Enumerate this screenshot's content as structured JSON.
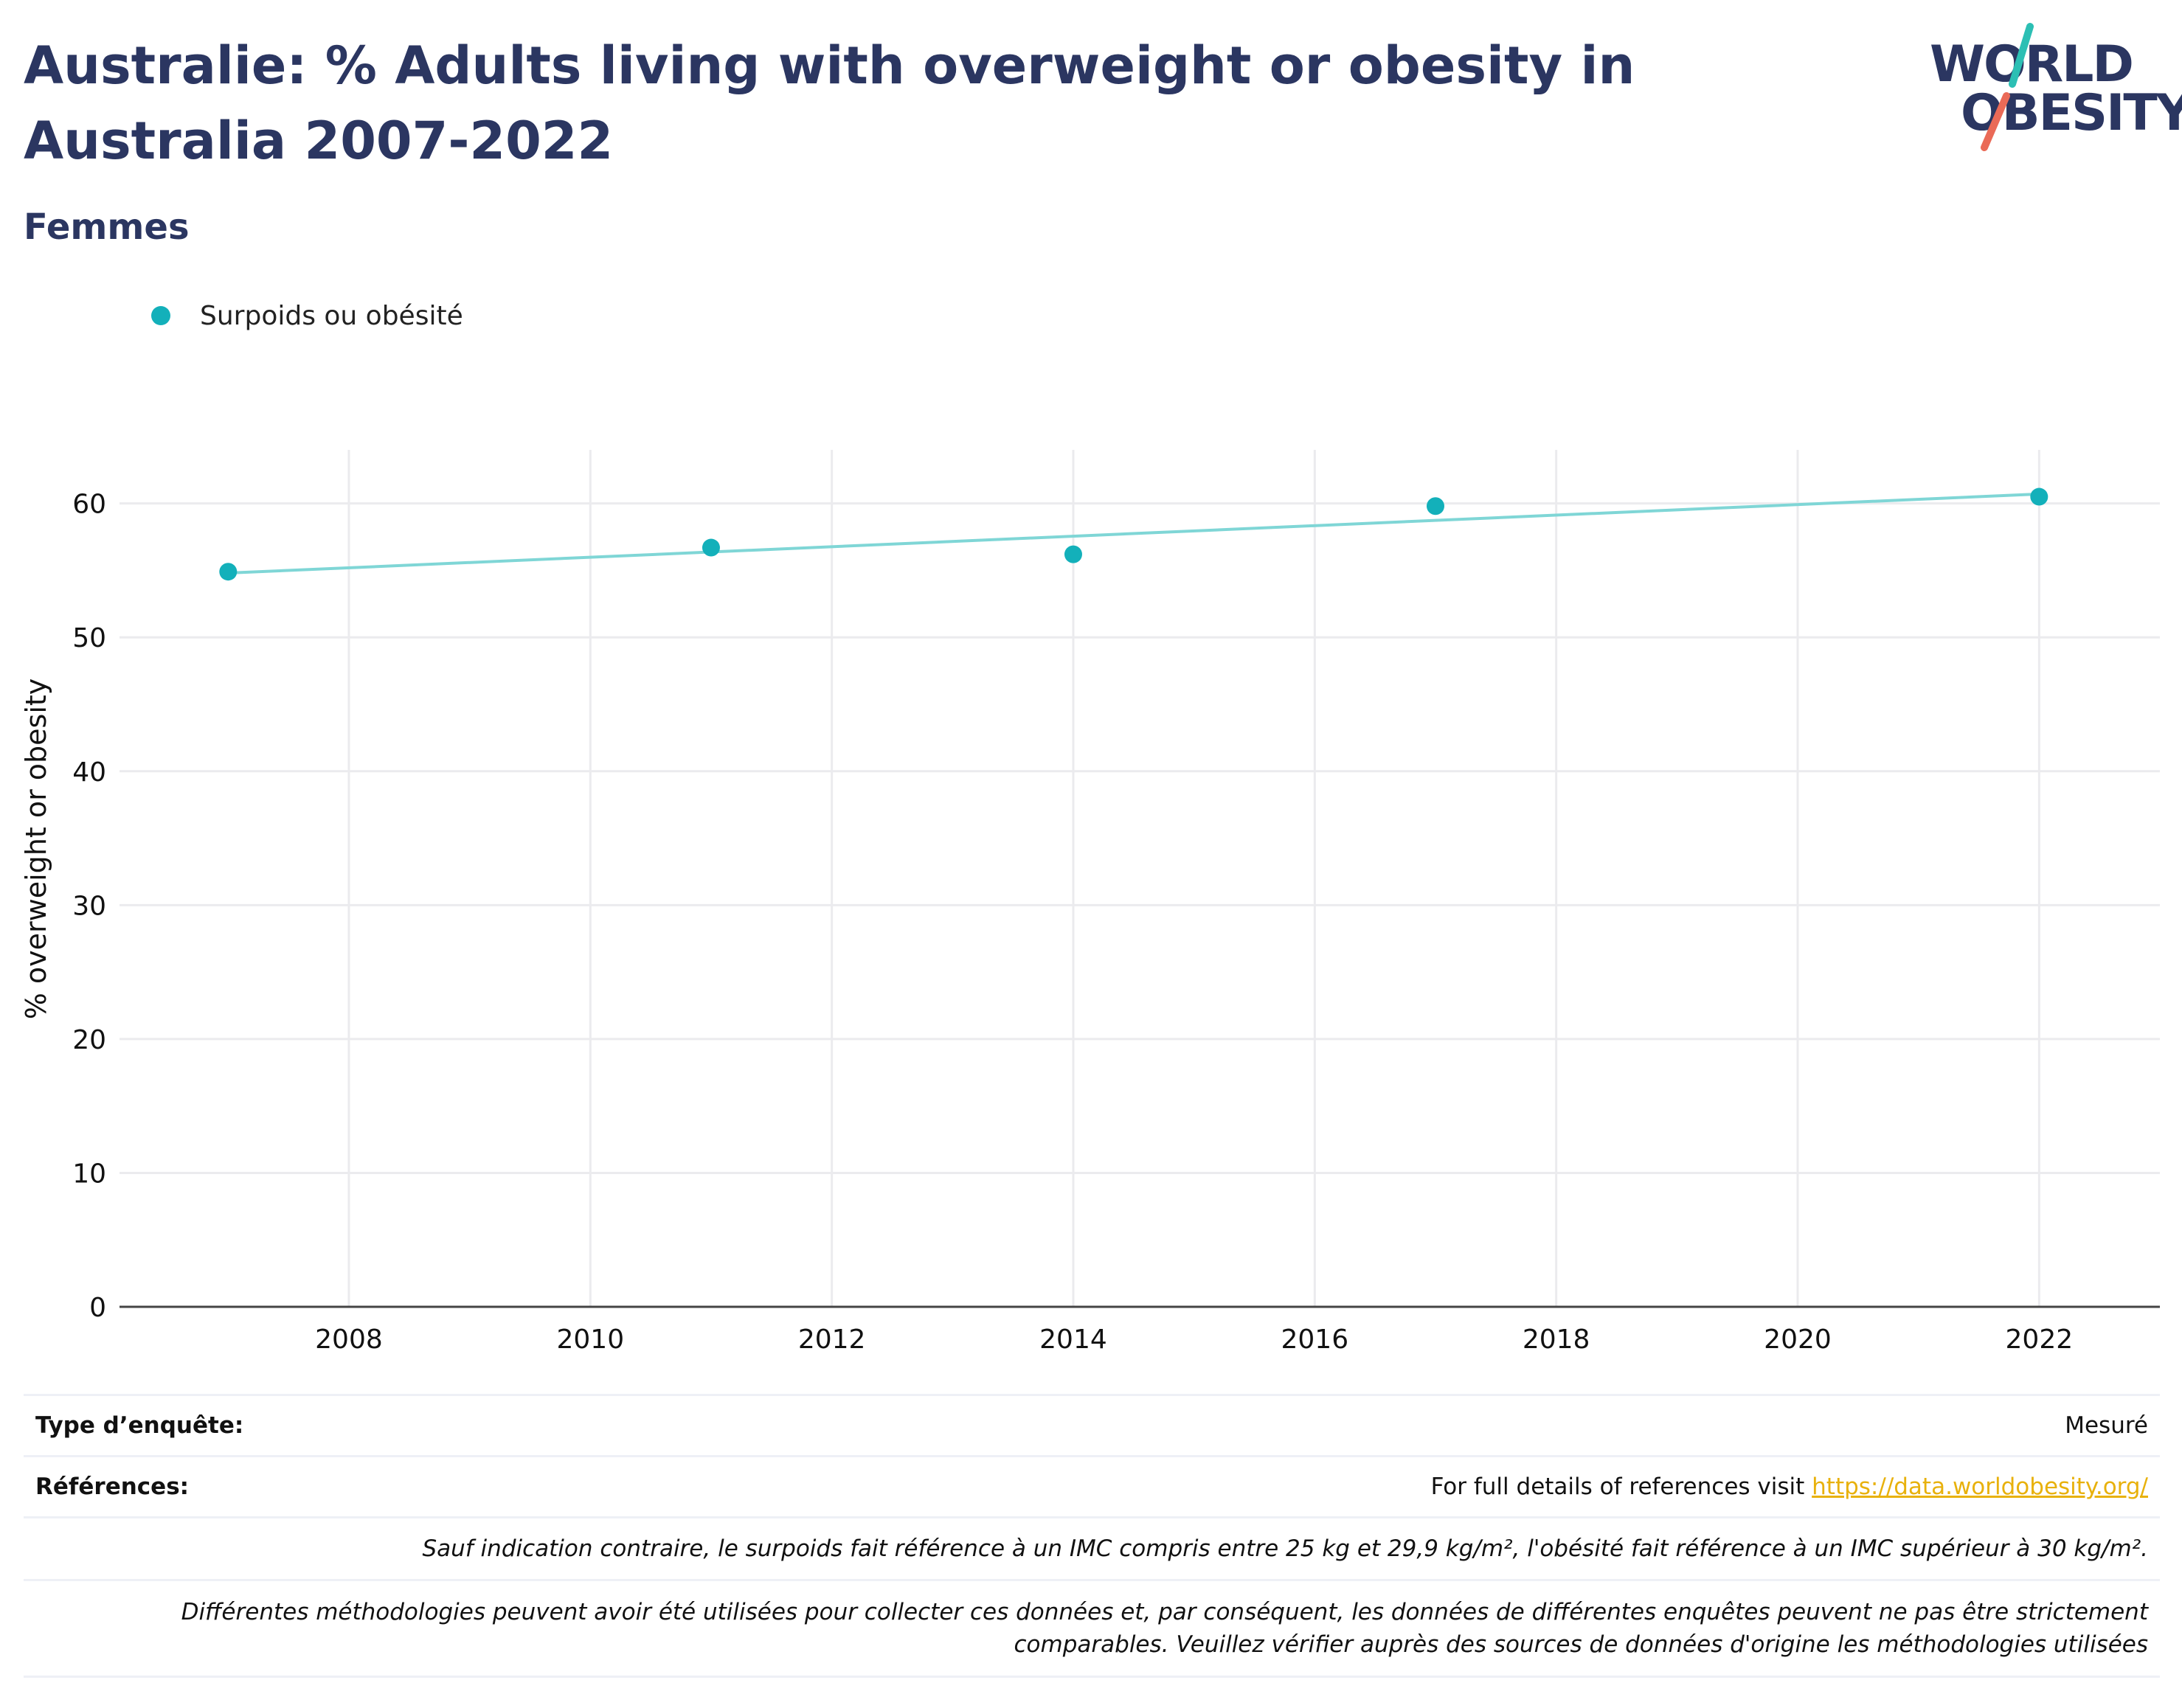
{
  "header": {
    "title": "Australie: % Adults living with overweight or obesity in Australia 2007-2022",
    "subtitle": "Femmes"
  },
  "logo": {
    "line1": "WORLD",
    "line2": "OBESITY",
    "accent_teal": "#2cbfb4",
    "accent_coral": "#ea6a57"
  },
  "colors": {
    "series": "#13b0ba",
    "trend": "#7fd6d6",
    "text": "#2b3661",
    "link": "#e8b10c"
  },
  "chart_data": {
    "type": "scatter",
    "ylabel": "% overweight or obesity",
    "xlabel": "",
    "xlim": [
      2006.1,
      2023.0
    ],
    "ylim": [
      0,
      64
    ],
    "x_ticks": [
      2008,
      2010,
      2012,
      2014,
      2016,
      2018,
      2020,
      2022
    ],
    "y_ticks": [
      0,
      10,
      20,
      30,
      40,
      50,
      60
    ],
    "grid": true,
    "legend_position": "top-left",
    "series": [
      {
        "name": "Surpoids ou obésité",
        "x": [
          2007,
          2011,
          2014,
          2017,
          2022
        ],
        "y": [
          54.9,
          56.7,
          56.2,
          59.8,
          60.5
        ]
      }
    ],
    "trendline": {
      "x": [
        2007,
        2022
      ],
      "y": [
        54.8,
        60.7
      ]
    }
  },
  "info": {
    "survey_label": "Type d’enquête:",
    "survey_value": "Mesuré",
    "refs_label": "Références:",
    "refs_text": "For full details of references visit ",
    "refs_link": "https://data.worldobesity.org/",
    "note1": "Sauf indication contraire, le surpoids fait référence à un IMC compris entre 25 kg et 29,9 kg/m², l'obésité fait référence à un IMC supérieur à 30 kg/m².",
    "note2_line1": "Différentes méthodologies peuvent avoir été utilisées pour collecter ces données et, par conséquent, les données de différentes enquêtes peuvent ne pas être strictement",
    "note2_line2": "comparables. Veuillez vérifier auprès des sources de données d'origine les méthodologies utilisées"
  }
}
